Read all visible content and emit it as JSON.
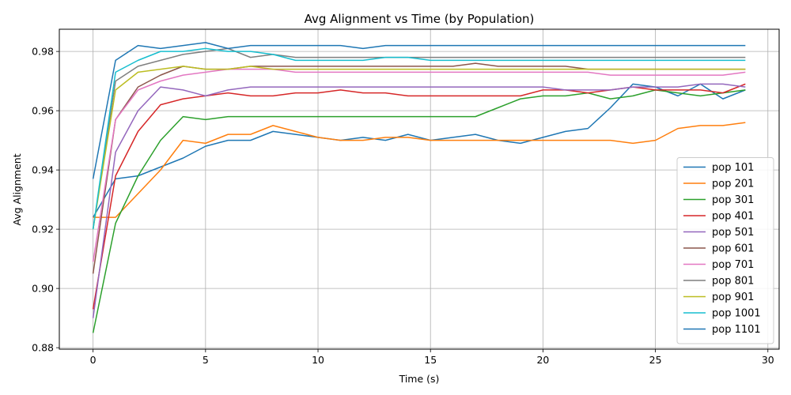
{
  "chart_data": {
    "type": "line",
    "title": "Avg Alignment vs Time (by Population)",
    "xlabel": "Time (s)",
    "ylabel": "Avg Alignment",
    "xlim": [
      -1.5,
      30.5
    ],
    "ylim": [
      0.8795,
      0.9875
    ],
    "xticks": [
      0,
      5,
      10,
      15,
      20,
      25,
      30
    ],
    "yticks": [
      0.88,
      0.9,
      0.92,
      0.94,
      0.96,
      0.98
    ],
    "ytick_labels": [
      "0.88",
      "0.90",
      "0.92",
      "0.94",
      "0.96",
      "0.98"
    ],
    "grid": true,
    "legend_position": "lower-right",
    "x": [
      0,
      1,
      2,
      3,
      4,
      5,
      6,
      7,
      8,
      9,
      10,
      11,
      12,
      13,
      14,
      15,
      16,
      17,
      18,
      19,
      20,
      21,
      22,
      23,
      24,
      25,
      26,
      27,
      28,
      29
    ],
    "series": [
      {
        "name": "pop 101",
        "color": "#1f77b4",
        "values": [
          0.924,
          0.937,
          0.938,
          0.941,
          0.944,
          0.948,
          0.95,
          0.95,
          0.953,
          0.952,
          0.951,
          0.95,
          0.951,
          0.95,
          0.952,
          0.95,
          0.951,
          0.952,
          0.95,
          0.949,
          0.951,
          0.953,
          0.954,
          0.961,
          0.969,
          0.968,
          0.965,
          0.969,
          0.964,
          0.967
        ]
      },
      {
        "name": "pop 201",
        "color": "#ff7f0e",
        "values": [
          0.924,
          0.924,
          0.932,
          0.94,
          0.95,
          0.949,
          0.952,
          0.952,
          0.955,
          0.953,
          0.951,
          0.95,
          0.95,
          0.951,
          0.951,
          0.95,
          0.95,
          0.95,
          0.95,
          0.95,
          0.95,
          0.95,
          0.95,
          0.95,
          0.949,
          0.95,
          0.954,
          0.955,
          0.955,
          0.956
        ]
      },
      {
        "name": "pop 301",
        "color": "#2ca02c",
        "values": [
          0.885,
          0.922,
          0.938,
          0.95,
          0.958,
          0.957,
          0.958,
          0.958,
          0.958,
          0.958,
          0.958,
          0.958,
          0.958,
          0.958,
          0.958,
          0.958,
          0.958,
          0.958,
          0.961,
          0.964,
          0.965,
          0.965,
          0.966,
          0.964,
          0.965,
          0.967,
          0.966,
          0.965,
          0.966,
          0.967
        ]
      },
      {
        "name": "pop 401",
        "color": "#d62728",
        "values": [
          0.893,
          0.938,
          0.953,
          0.962,
          0.964,
          0.965,
          0.966,
          0.965,
          0.965,
          0.966,
          0.966,
          0.967,
          0.966,
          0.966,
          0.965,
          0.965,
          0.965,
          0.965,
          0.965,
          0.965,
          0.967,
          0.967,
          0.966,
          0.967,
          0.968,
          0.967,
          0.967,
          0.967,
          0.966,
          0.969
        ]
      },
      {
        "name": "pop 501",
        "color": "#9467bd",
        "values": [
          0.89,
          0.946,
          0.96,
          0.968,
          0.967,
          0.965,
          0.967,
          0.968,
          0.968,
          0.968,
          0.968,
          0.968,
          0.968,
          0.968,
          0.968,
          0.968,
          0.968,
          0.968,
          0.968,
          0.968,
          0.968,
          0.967,
          0.967,
          0.967,
          0.968,
          0.968,
          0.968,
          0.969,
          0.969,
          0.968
        ]
      },
      {
        "name": "pop 601",
        "color": "#8c564b",
        "values": [
          0.905,
          0.957,
          0.968,
          0.972,
          0.975,
          0.974,
          0.974,
          0.975,
          0.975,
          0.975,
          0.975,
          0.975,
          0.975,
          0.975,
          0.975,
          0.975,
          0.975,
          0.976,
          0.975,
          0.975,
          0.975,
          0.975,
          0.974,
          0.974,
          0.974,
          0.974,
          0.974,
          0.974,
          0.974,
          0.974
        ]
      },
      {
        "name": "pop 701",
        "color": "#e377c2",
        "values": [
          0.909,
          0.957,
          0.967,
          0.97,
          0.972,
          0.973,
          0.974,
          0.974,
          0.974,
          0.973,
          0.973,
          0.973,
          0.973,
          0.973,
          0.973,
          0.973,
          0.973,
          0.973,
          0.973,
          0.973,
          0.973,
          0.973,
          0.973,
          0.972,
          0.972,
          0.972,
          0.972,
          0.972,
          0.972,
          0.973
        ]
      },
      {
        "name": "pop 801",
        "color": "#7f7f7f",
        "values": [
          0.92,
          0.97,
          0.975,
          0.977,
          0.979,
          0.98,
          0.981,
          0.978,
          0.979,
          0.978,
          0.978,
          0.978,
          0.978,
          0.978,
          0.978,
          0.978,
          0.978,
          0.978,
          0.978,
          0.978,
          0.978,
          0.978,
          0.978,
          0.978,
          0.978,
          0.978,
          0.978,
          0.978,
          0.978,
          0.978
        ]
      },
      {
        "name": "pop 901",
        "color": "#bcbd22",
        "values": [
          0.92,
          0.967,
          0.973,
          0.974,
          0.975,
          0.974,
          0.974,
          0.975,
          0.974,
          0.974,
          0.974,
          0.974,
          0.974,
          0.974,
          0.974,
          0.974,
          0.974,
          0.974,
          0.974,
          0.974,
          0.974,
          0.974,
          0.974,
          0.974,
          0.974,
          0.974,
          0.974,
          0.974,
          0.974,
          0.974
        ]
      },
      {
        "name": "pop 1001",
        "color": "#17becf",
        "values": [
          0.92,
          0.973,
          0.977,
          0.98,
          0.98,
          0.981,
          0.98,
          0.98,
          0.979,
          0.977,
          0.977,
          0.977,
          0.977,
          0.978,
          0.978,
          0.977,
          0.977,
          0.977,
          0.977,
          0.977,
          0.977,
          0.977,
          0.977,
          0.977,
          0.977,
          0.977,
          0.977,
          0.977,
          0.977,
          0.977
        ]
      },
      {
        "name": "pop 1101",
        "color": "#1f77b4",
        "values": [
          0.937,
          0.977,
          0.982,
          0.981,
          0.982,
          0.983,
          0.981,
          0.982,
          0.982,
          0.982,
          0.982,
          0.982,
          0.981,
          0.982,
          0.982,
          0.982,
          0.982,
          0.982,
          0.982,
          0.982,
          0.982,
          0.982,
          0.982,
          0.982,
          0.982,
          0.982,
          0.982,
          0.982,
          0.982,
          0.982
        ]
      }
    ]
  }
}
